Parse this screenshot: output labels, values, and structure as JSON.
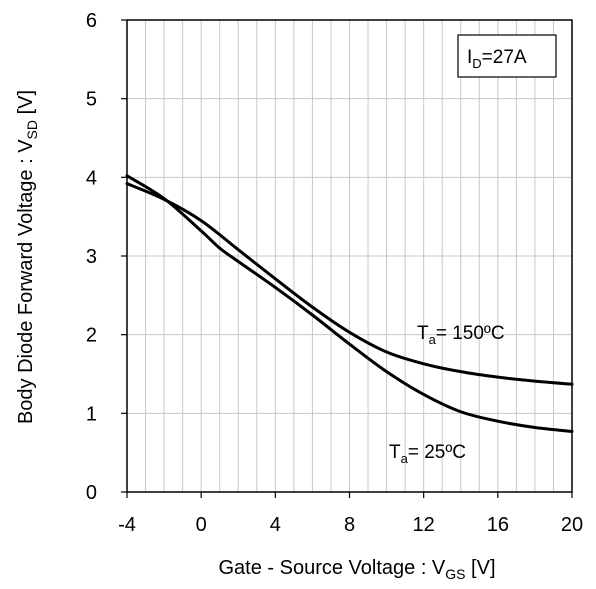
{
  "chart_data": {
    "type": "line",
    "xlabel": {
      "main": "Gate - Source Voltage : V",
      "sub": "GS",
      "unit": " [V]"
    },
    "ylabel": {
      "main": "Body Diode  Forward Voltage : V",
      "sub": "SD",
      "unit": " [V]"
    },
    "xlim": [
      -4,
      20
    ],
    "ylim": [
      0,
      6
    ],
    "x_ticks": [
      -4,
      0,
      4,
      8,
      12,
      16,
      20
    ],
    "y_ticks": [
      0,
      1,
      2,
      3,
      4,
      5,
      6
    ],
    "x_ticks_text": [
      "-4",
      "0",
      "4",
      "8",
      "12",
      "16",
      "20"
    ],
    "y_ticks_text": [
      "0",
      "1",
      "2",
      "3",
      "4",
      "5",
      "6"
    ],
    "grid": true,
    "condition": {
      "main": "I",
      "sub": "D",
      "rest": "=27A"
    },
    "series": [
      {
        "name": "Ta= 25ºC",
        "label": {
          "main": "T",
          "sub": "a",
          "rest": "= 25ºC"
        },
        "x": [
          -4,
          -2,
          0,
          1,
          2,
          4,
          6,
          8,
          10,
          12,
          14,
          16,
          18,
          20
        ],
        "y": [
          4.02,
          3.73,
          3.32,
          3.1,
          2.93,
          2.6,
          2.25,
          1.88,
          1.53,
          1.24,
          1.02,
          0.9,
          0.82,
          0.77
        ]
      },
      {
        "name": "Ta= 150ºC",
        "label": {
          "main": "T",
          "sub": "a",
          "rest": "= 150ºC"
        },
        "x": [
          -4,
          -2,
          0,
          2,
          4,
          6,
          8,
          10,
          12,
          14,
          16,
          18,
          20
        ],
        "y": [
          3.92,
          3.72,
          3.45,
          3.08,
          2.71,
          2.35,
          2.03,
          1.78,
          1.63,
          1.53,
          1.46,
          1.41,
          1.37
        ]
      }
    ]
  }
}
